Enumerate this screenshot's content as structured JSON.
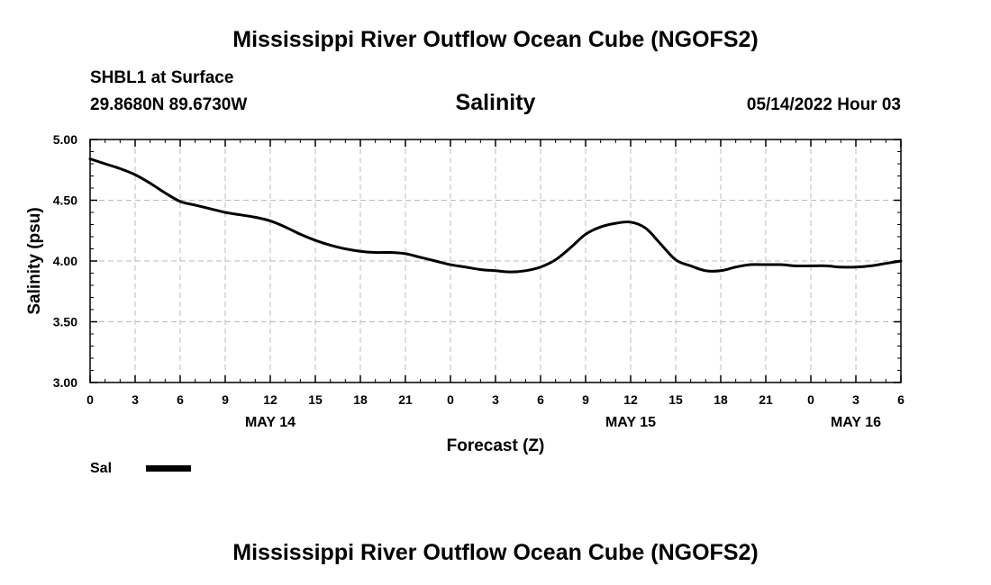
{
  "page_title": "Mississippi River Outflow Ocean Cube (NGOFS2)",
  "station": "SHBL1 at Surface",
  "coordinates": "29.8680N  89.6730W",
  "run_time": "05/14/2022 Hour 03",
  "footer_title": "Mississippi River Outflow Ocean Cube (NGOFS2)",
  "colors": {
    "line": "#000000",
    "grid": "#bbbbbb",
    "background": "#ffffff"
  },
  "chart_data": {
    "type": "line",
    "title": "Salinity",
    "xlabel": "Forecast (Z)",
    "ylabel": "Salinity (psu)",
    "xlim": [
      0,
      54
    ],
    "ylim": [
      3.0,
      5.0
    ],
    "grid": true,
    "x_ticks": [
      0,
      3,
      6,
      9,
      12,
      15,
      18,
      21,
      24,
      27,
      30,
      33,
      36,
      39,
      42,
      45,
      48,
      51,
      54
    ],
    "x_tick_labels": [
      "0",
      "3",
      "6",
      "9",
      "12",
      "15",
      "18",
      "21",
      "0",
      "3",
      "6",
      "9",
      "12",
      "15",
      "18",
      "21",
      "0",
      "3",
      "6"
    ],
    "y_ticks": [
      3.0,
      3.5,
      4.0,
      4.5,
      5.0
    ],
    "y_tick_labels": [
      "3.00",
      "3.50",
      "4.00",
      "4.50",
      "5.00"
    ],
    "date_labels": [
      {
        "x": 12,
        "label": "MAY 14"
      },
      {
        "x": 36,
        "label": "MAY 15"
      },
      {
        "x": 51,
        "label": "MAY 16"
      }
    ],
    "legend": {
      "label": "Sal",
      "placement": "bottom-left"
    },
    "series": [
      {
        "name": "Sal",
        "x": [
          0,
          1,
          2,
          3,
          4,
          5,
          6,
          7,
          8,
          9,
          10,
          11,
          12,
          13,
          14,
          15,
          16,
          17,
          18,
          19,
          20,
          21,
          22,
          23,
          24,
          25,
          26,
          27,
          28,
          29,
          30,
          31,
          32,
          33,
          34,
          35,
          36,
          37,
          38,
          39,
          40,
          41,
          42,
          43,
          44,
          45,
          46,
          47,
          48,
          49,
          50,
          51,
          52,
          53,
          54
        ],
        "values": [
          4.84,
          4.8,
          4.76,
          4.71,
          4.64,
          4.56,
          4.49,
          4.46,
          4.43,
          4.4,
          4.38,
          4.36,
          4.33,
          4.28,
          4.22,
          4.17,
          4.13,
          4.1,
          4.08,
          4.07,
          4.07,
          4.06,
          4.03,
          4.0,
          3.97,
          3.95,
          3.93,
          3.92,
          3.91,
          3.92,
          3.95,
          4.01,
          4.11,
          4.22,
          4.28,
          4.31,
          4.32,
          4.27,
          4.14,
          4.01,
          3.96,
          3.92,
          3.92,
          3.95,
          3.97,
          3.97,
          3.97,
          3.96,
          3.96,
          3.96,
          3.95,
          3.95,
          3.96,
          3.98,
          4.0
        ]
      }
    ]
  }
}
